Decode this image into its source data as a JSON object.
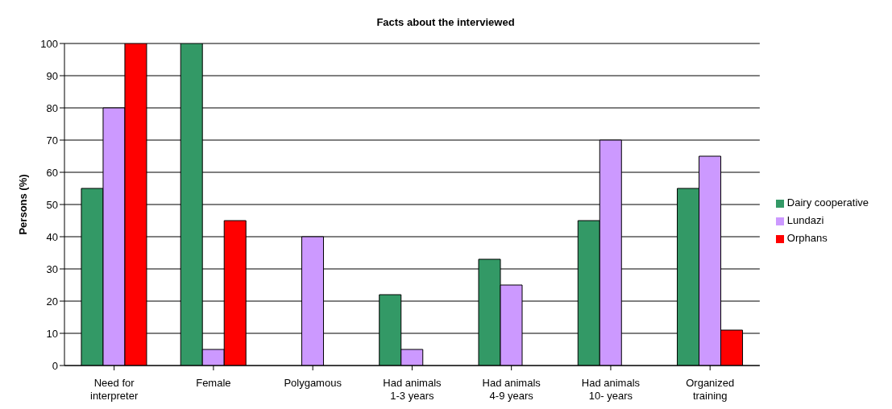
{
  "chart_data": {
    "type": "bar",
    "title": "Facts about the interviewed",
    "ylabel": "Persons (%)",
    "categories": [
      "Need for interpreter",
      "Female",
      "Polygamous",
      "Had animals 1-3 years",
      "Had animals 4-9 years",
      "Had animals 10- years",
      "Organized training"
    ],
    "series": [
      {
        "name": "Dairy cooperative",
        "color": "#339966",
        "values": [
          55,
          100,
          null,
          22,
          33,
          45,
          55
        ]
      },
      {
        "name": "Lundazi",
        "color": "#cc99ff",
        "values": [
          80,
          5,
          40,
          5,
          25,
          70,
          65
        ]
      },
      {
        "name": "Orphans",
        "color": "#ff0000",
        "values": [
          100,
          45,
          null,
          null,
          null,
          null,
          11
        ]
      }
    ],
    "ylim": [
      0,
      100
    ],
    "yticks": [
      0,
      10,
      20,
      30,
      40,
      50,
      60,
      70,
      80,
      90,
      100
    ],
    "grid": "y",
    "legend": "right"
  }
}
